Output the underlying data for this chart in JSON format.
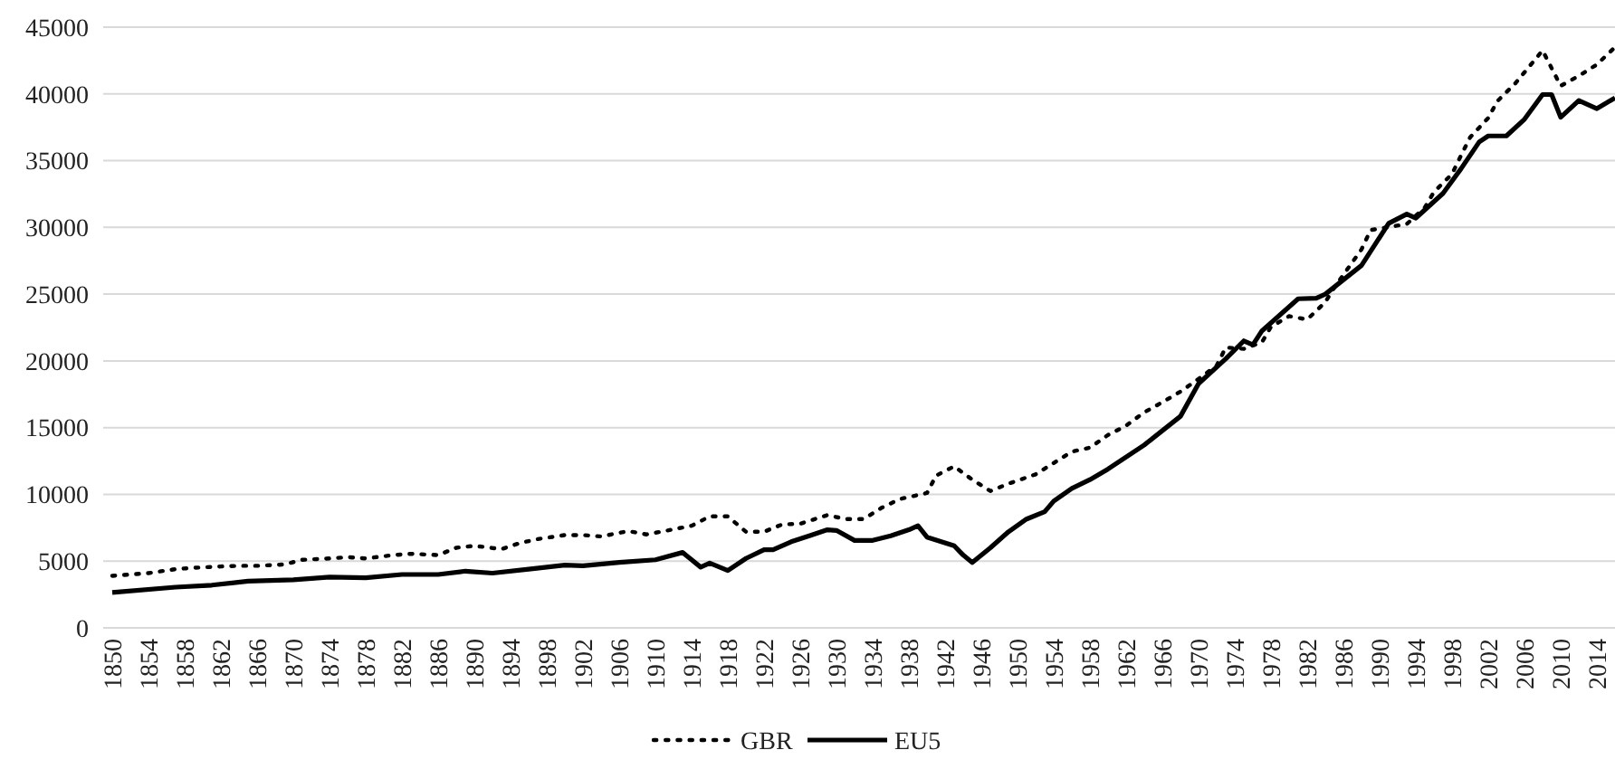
{
  "chart_data": {
    "type": "line",
    "xlim": [
      1849,
      2016
    ],
    "xticks": [
      1850,
      1854,
      1858,
      1862,
      1866,
      1870,
      1874,
      1878,
      1882,
      1886,
      1890,
      1894,
      1898,
      1902,
      1906,
      1910,
      1914,
      1918,
      1922,
      1926,
      1930,
      1934,
      1938,
      1942,
      1946,
      1950,
      1954,
      1958,
      1962,
      1966,
      1970,
      1974,
      1978,
      1982,
      1986,
      1990,
      1994,
      1998,
      2002,
      2006,
      2010,
      2014
    ],
    "ylim": [
      0,
      45000
    ],
    "yticks": [
      0,
      5000,
      10000,
      15000,
      20000,
      25000,
      30000,
      35000,
      40000,
      45000
    ],
    "grid": "y",
    "legend": "bottom",
    "series": [
      {
        "name": "GBR",
        "color": "#000000",
        "line_style": "dotted",
        "x": [
          1850,
          1852,
          1854,
          1857,
          1859,
          1862,
          1864,
          1866,
          1869,
          1871,
          1874,
          1876,
          1878,
          1881,
          1883,
          1886,
          1888,
          1890,
          1893,
          1895,
          1897,
          1900,
          1902,
          1904,
          1907,
          1909,
          1911,
          1914,
          1916,
          1918,
          1920,
          1922,
          1924,
          1926,
          1929,
          1931,
          1933,
          1935,
          1937,
          1940,
          1941,
          1943,
          1945,
          1947,
          1949,
          1952,
          1954,
          1956,
          1958,
          1960,
          1962,
          1964,
          1966,
          1968,
          1970,
          1972,
          1973,
          1975,
          1977,
          1978,
          1980,
          1982,
          1984,
          1985,
          1988,
          1989,
          1993,
          1995,
          1996,
          1998,
          1999,
          2000,
          2002,
          2003,
          2005,
          2008,
          2010,
          2012,
          2014,
          2016
        ],
        "values": [
          3900,
          4000,
          4100,
          4400,
          4500,
          4600,
          4650,
          4650,
          4750,
          5100,
          5200,
          5300,
          5200,
          5450,
          5550,
          5450,
          6000,
          6150,
          5900,
          6350,
          6650,
          6950,
          6950,
          6850,
          7250,
          7000,
          7250,
          7650,
          8350,
          8350,
          7200,
          7200,
          7750,
          7800,
          8450,
          8150,
          8150,
          9000,
          9650,
          10100,
          11400,
          12100,
          11100,
          10250,
          10800,
          11500,
          12350,
          13200,
          13500,
          14450,
          15150,
          16150,
          16900,
          17700,
          18650,
          19650,
          21000,
          20900,
          21400,
          22550,
          23350,
          23100,
          24400,
          25500,
          28350,
          29800,
          30250,
          31500,
          32650,
          34000,
          35400,
          36750,
          38200,
          39450,
          40800,
          43250,
          40600,
          41350,
          42200,
          43500
        ]
      },
      {
        "name": "EU5",
        "color": "#000000",
        "line_style": "solid",
        "x": [
          1850,
          1857,
          1861,
          1865,
          1870,
          1874,
          1878,
          1882,
          1886,
          1889,
          1892,
          1896,
          1900,
          1902,
          1906,
          1910,
          1913,
          1915,
          1916,
          1918,
          1920,
          1922,
          1923,
          1925,
          1927,
          1929,
          1930,
          1932,
          1934,
          1936,
          1938,
          1939,
          1940,
          1943,
          1944,
          1945,
          1947,
          1949,
          1951,
          1953,
          1954,
          1956,
          1958,
          1960,
          1964,
          1968,
          1970,
          1973,
          1975,
          1976,
          1977,
          1981,
          1983,
          1984,
          1988,
          1991,
          1993,
          1994,
          1997,
          1999,
          2001,
          2002,
          2004,
          2006,
          2008,
          2009,
          2010,
          2012,
          2014,
          2016
        ],
        "values": [
          2650,
          3050,
          3200,
          3500,
          3600,
          3800,
          3750,
          4000,
          4000,
          4250,
          4100,
          4400,
          4700,
          4650,
          4900,
          5100,
          5650,
          4550,
          4850,
          4300,
          5200,
          5850,
          5850,
          6450,
          6900,
          7350,
          7300,
          6550,
          6550,
          6900,
          7350,
          7650,
          6800,
          6150,
          5450,
          4900,
          6000,
          7200,
          8150,
          8700,
          9500,
          10450,
          11100,
          11900,
          13700,
          15850,
          18300,
          20150,
          21500,
          21200,
          22250,
          24650,
          24700,
          25000,
          27150,
          30300,
          31000,
          30700,
          32550,
          34400,
          36400,
          36850,
          36850,
          38100,
          39950,
          39950,
          38250,
          39500,
          38900,
          39700
        ]
      }
    ]
  }
}
